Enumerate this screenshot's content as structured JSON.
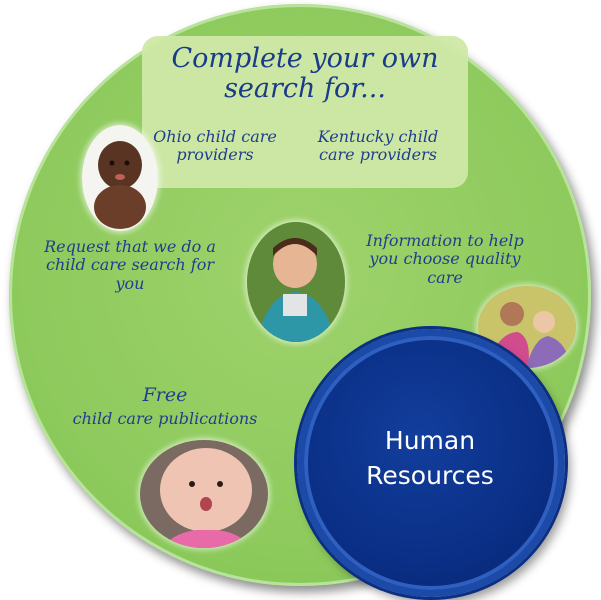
{
  "search": {
    "title": "Complete your own search for...",
    "ohio_link": "Ohio child care providers",
    "kentucky_link": "Kentucky child care providers"
  },
  "request_link": "Request that we do a child care search for you",
  "info_link": "Information to help you choose quality care",
  "publications": {
    "free": "Free",
    "label": "child care publications"
  },
  "human_resources": "Human Resources",
  "colors": {
    "main_circle": "#8cc95b",
    "panel": "#cfe8a6",
    "text": "#1f3e8f",
    "hr_circle": "#0a2f86"
  },
  "images": [
    "baby-photo",
    "boy-photo",
    "girls-photo",
    "infant-photo"
  ]
}
